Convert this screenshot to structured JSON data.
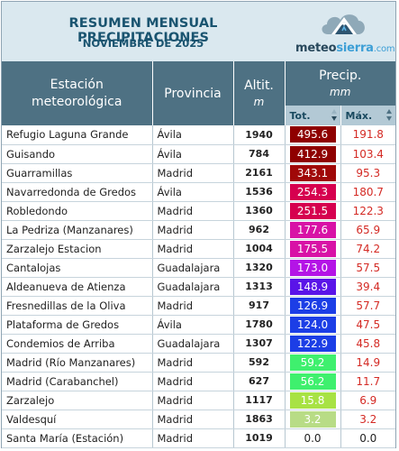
{
  "header": {
    "title": "RESUMEN MENSUAL PRECIPITACIONES",
    "subtitle": "NOVIEMBRE DE 2025",
    "brand_part1": "meteo",
    "brand_part2": "sierra",
    "brand_part3": ".com",
    "logo_icon": "mountain-cloud-icon"
  },
  "columns": {
    "station_line1": "Estación",
    "station_line2": "meteorológica",
    "province": "Provincia",
    "altitude": "Altit.",
    "altitude_unit": "m",
    "precip": "Precip.",
    "precip_unit": "mm",
    "total": "Tot.",
    "max": "Máx.",
    "total_sort": "sort-desc-icon",
    "max_sort": "sort-icon"
  },
  "colors": {
    "header_bg": "#4e7183",
    "subheader_bg": "#b3c9d5",
    "banner_bg": "#dae8ef",
    "max_text": "#d42a24"
  },
  "rows": [
    {
      "station": "Refugio Laguna Grande",
      "province": "Ávila",
      "altitude": "1940",
      "total": "495.6",
      "max": "191.8",
      "color": "#8f0000",
      "text": "#ffffff"
    },
    {
      "station": "Guisando",
      "province": "Ávila",
      "altitude": "784",
      "total": "412.9",
      "color": "#8f0000",
      "max": "103.4",
      "text": "#ffffff"
    },
    {
      "station": "Guarramillas",
      "province": "Madrid",
      "altitude": "2161",
      "total": "343.1",
      "max": "95.3",
      "color": "#a00808",
      "text": "#ffffff"
    },
    {
      "station": "Navarredonda de Gredos",
      "province": "Ávila",
      "altitude": "1536",
      "total": "254.3",
      "max": "180.7",
      "color": "#d6004f",
      "text": "#ffffff"
    },
    {
      "station": "Robledondo",
      "province": "Madrid",
      "altitude": "1360",
      "total": "251.5",
      "max": "122.3",
      "color": "#d6004f",
      "text": "#ffffff"
    },
    {
      "station": "La Pedriza (Manzanares)",
      "province": "Madrid",
      "altitude": "962",
      "total": "177.6",
      "max": "65.9",
      "color": "#d812a6",
      "text": "#ffffff"
    },
    {
      "station": "Zarzalejo Estacion",
      "province": "Madrid",
      "altitude": "1004",
      "total": "175.5",
      "max": "74.2",
      "color": "#d812a6",
      "text": "#ffffff"
    },
    {
      "station": "Cantalojas",
      "province": "Guadalajara",
      "altitude": "1320",
      "total": "173.0",
      "max": "57.5",
      "color": "#b414e6",
      "text": "#ffffff"
    },
    {
      "station": "Aldeanueva de Atienza",
      "province": "Guadalajara",
      "altitude": "1313",
      "total": "148.9",
      "max": "39.4",
      "color": "#5a14e8",
      "text": "#ffffff"
    },
    {
      "station": "Fresnedillas de la Oliva",
      "province": "Madrid",
      "altitude": "917",
      "total": "126.9",
      "max": "57.7",
      "color": "#1c3ee6",
      "text": "#ffffff"
    },
    {
      "station": "Plataforma de Gredos",
      "province": "Ávila",
      "altitude": "1780",
      "total": "124.0",
      "max": "47.5",
      "color": "#1c3ee6",
      "text": "#ffffff"
    },
    {
      "station": "Condemios de Arriba",
      "province": "Guadalajara",
      "altitude": "1307",
      "total": "122.9",
      "max": "45.8",
      "color": "#1c3ee6",
      "text": "#ffffff"
    },
    {
      "station": "Madrid (Río Manzanares)",
      "province": "Madrid",
      "altitude": "592",
      "total": "59.2",
      "max": "14.9",
      "color": "#3ff06e",
      "text": "#ffffff"
    },
    {
      "station": "Madrid (Carabanchel)",
      "province": "Madrid",
      "altitude": "627",
      "total": "56.2",
      "max": "11.7",
      "color": "#3ff06e",
      "text": "#ffffff"
    },
    {
      "station": "Zarzalejo",
      "province": "Madrid",
      "altitude": "1117",
      "total": "15.8",
      "max": "6.9",
      "color": "#a8e244",
      "text": "#ffffff"
    },
    {
      "station": "Valdesquí",
      "province": "Madrid",
      "altitude": "1863",
      "total": "3.2",
      "max": "3.2",
      "color": "#b8dc86",
      "text": "#ffffff"
    },
    {
      "station": "Santa María (Estación)",
      "province": "Madrid",
      "altitude": "1019",
      "total": "0.0",
      "max": "0.0",
      "color": "#ffffff",
      "text": "#222222"
    }
  ]
}
